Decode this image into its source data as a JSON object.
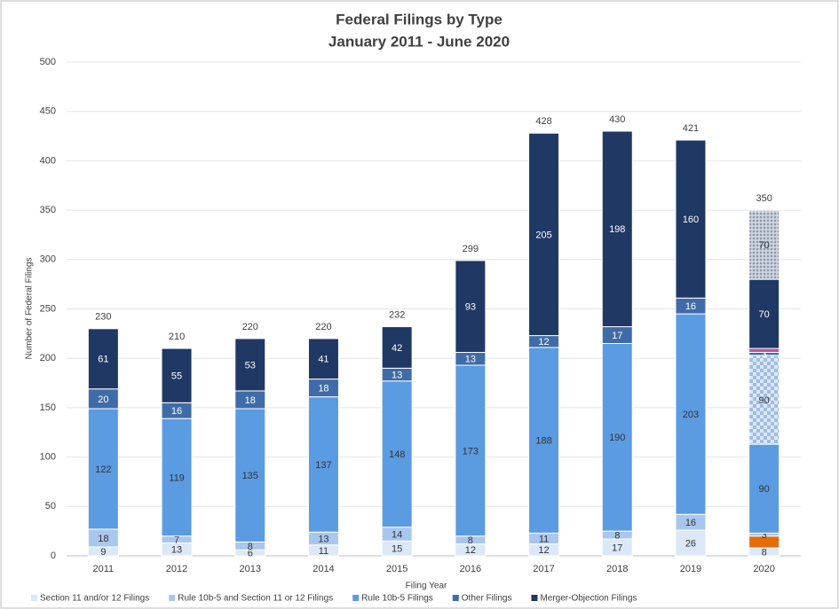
{
  "chart_data": {
    "type": "stacked_bar",
    "title": "Federal Filings by Type",
    "subtitle": "January 2011 - June 2020",
    "y_label": "Number of Federal Filings",
    "x_label": "Filing Year",
    "categories": [
      "2011",
      "2012",
      "2013",
      "2014",
      "2015",
      "2016",
      "2017",
      "2018",
      "2019",
      "2020"
    ],
    "totals": [
      230,
      210,
      220,
      220,
      232,
      299,
      428,
      430,
      421,
      350
    ],
    "ylim": [
      0,
      500
    ],
    "yticks": [
      0,
      50,
      100,
      150,
      200,
      250,
      300,
      350,
      400,
      450,
      500
    ],
    "grid": true,
    "legend": "bottom",
    "series": [
      {
        "name": "Section 11 and/or 12 Filings",
        "color": "#dce8f8",
        "values": [
          9,
          13,
          6,
          11,
          15,
          12,
          12,
          17,
          26,
          8
        ]
      },
      {
        "color": "#e46c0a",
        "values": [
          null,
          null,
          null,
          null,
          null,
          null,
          null,
          null,
          null,
          12
        ],
        "labels": false
      },
      {
        "name": "Rule 10b-5 and Section 11 or 12 Filings",
        "color": "#a9c7ee",
        "values": [
          18,
          7,
          8,
          13,
          14,
          8,
          11,
          8,
          16,
          3
        ]
      },
      {
        "name": "Rule 10b-5 Filings",
        "color": "#5b9be2",
        "values": [
          122,
          119,
          135,
          137,
          148,
          173,
          188,
          190,
          203,
          90
        ]
      },
      {
        "color": "#c5d9f1",
        "pattern": "checker",
        "values": [
          null,
          null,
          null,
          null,
          null,
          null,
          null,
          null,
          null,
          90
        ]
      },
      {
        "name": "Other Filings",
        "color": "#3f6ca8",
        "values": [
          20,
          16,
          18,
          18,
          13,
          13,
          12,
          17,
          16,
          3
        ]
      },
      {
        "color": "#b25a9a",
        "values": [
          null,
          null,
          null,
          null,
          null,
          null,
          null,
          null,
          null,
          4
        ],
        "labels": false
      },
      {
        "name": "Merger-Objection Filings",
        "color": "#1f3864",
        "values": [
          61,
          55,
          53,
          41,
          42,
          93,
          205,
          198,
          160,
          70
        ]
      },
      {
        "color": "#a6a6a6",
        "pattern": "hatch",
        "values": [
          null,
          null,
          null,
          null,
          null,
          null,
          null,
          null,
          null,
          70
        ]
      }
    ]
  }
}
